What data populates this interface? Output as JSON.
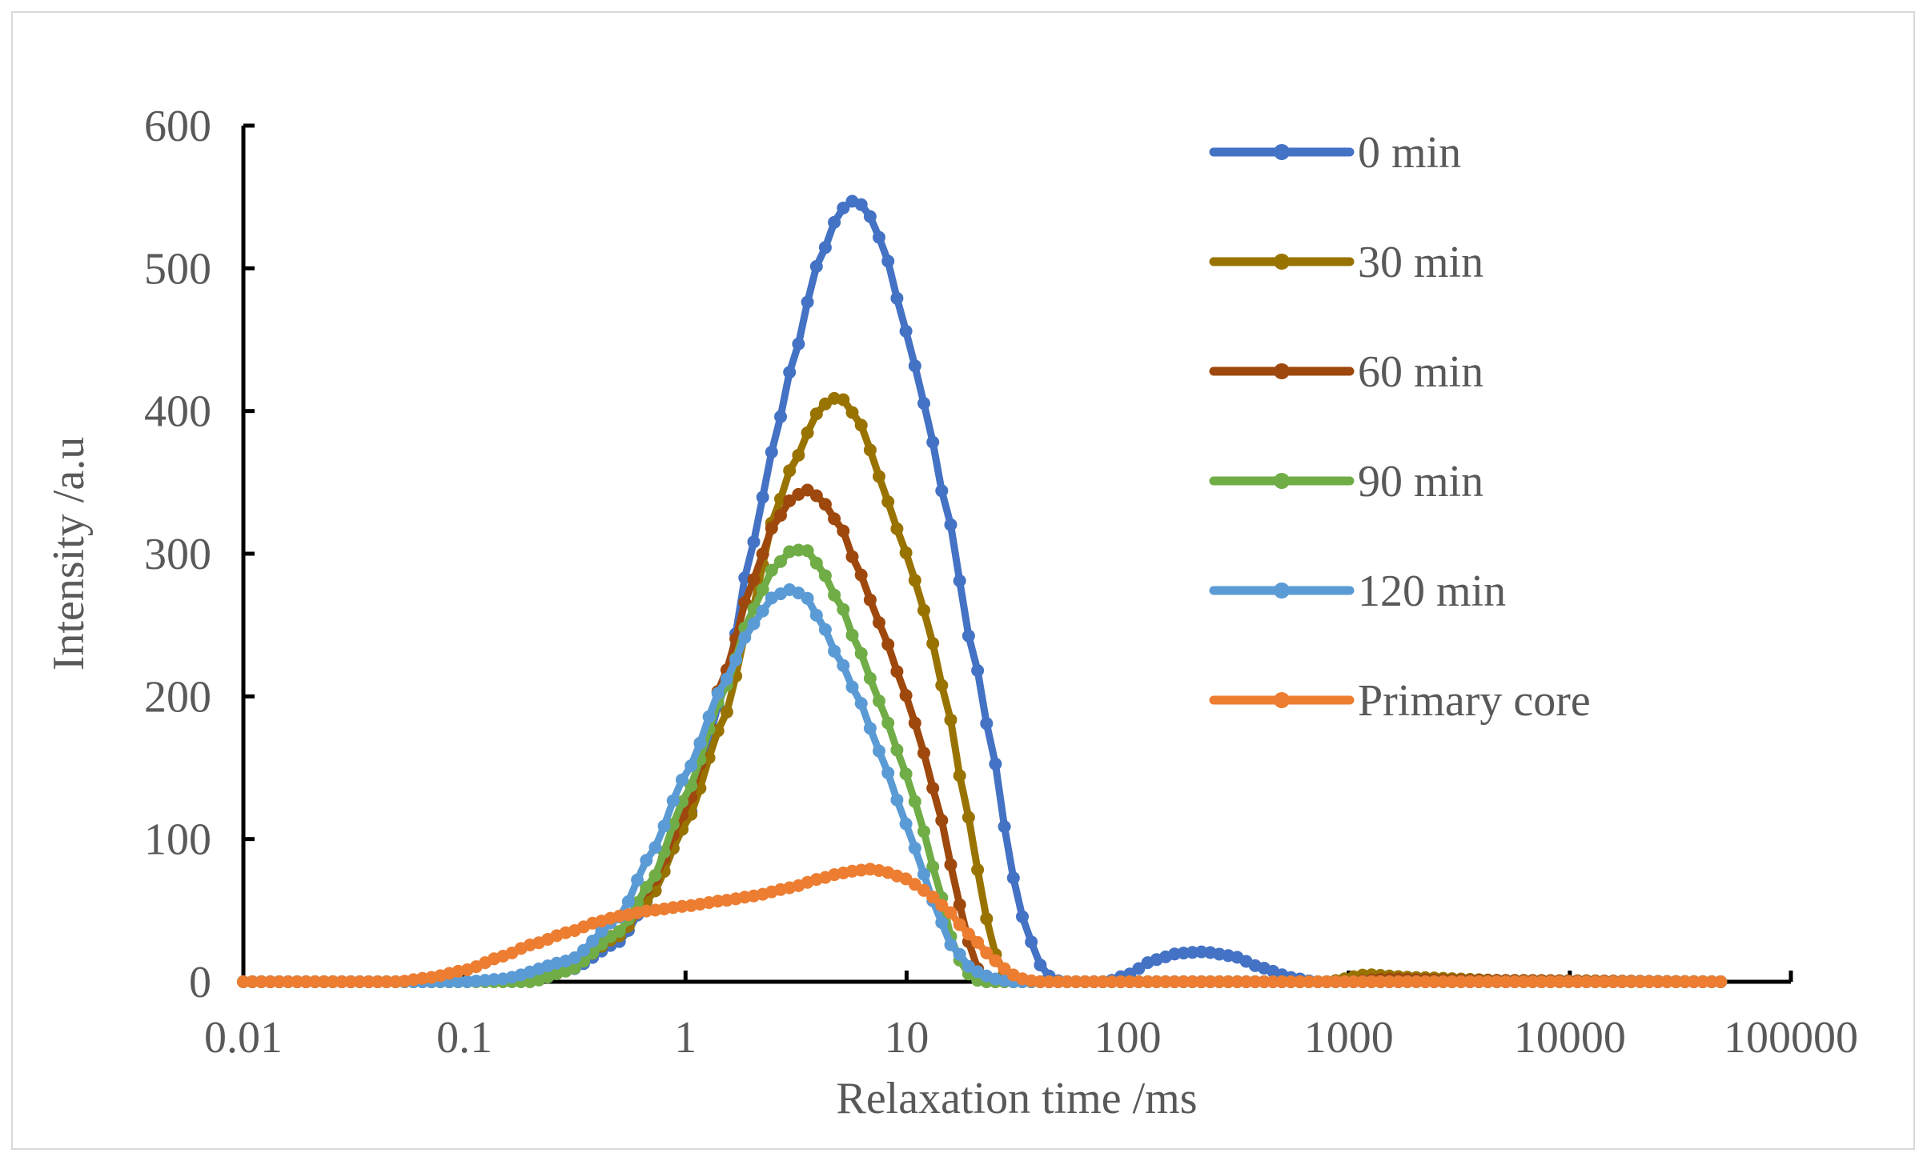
{
  "chart_data": {
    "type": "line",
    "title": "",
    "xlabel": "Relaxation time /ms",
    "ylabel": "Intensity /a.u",
    "xscale": "log",
    "xlim": [
      0.01,
      100000
    ],
    "ylim": [
      0,
      600
    ],
    "x_ticks": [
      0.01,
      0.1,
      1,
      10,
      100,
      1000,
      10000,
      100000
    ],
    "x_tick_labels": [
      "0.01",
      "0.1",
      "1",
      "10",
      "100",
      "1000",
      "10000",
      "100000"
    ],
    "y_ticks": [
      0,
      100,
      200,
      300,
      400,
      500,
      600
    ],
    "y_tick_labels": [
      "0",
      "100",
      "200",
      "300",
      "400",
      "500",
      "600"
    ],
    "grid": false,
    "legend_position": "top-right",
    "series": [
      {
        "name": "0 min",
        "color": "#4472C4",
        "points": [
          [
            0.01,
            0
          ],
          [
            0.1,
            0
          ],
          [
            0.2,
            2
          ],
          [
            0.3,
            8
          ],
          [
            0.5,
            28
          ],
          [
            0.7,
            60
          ],
          [
            1,
            110
          ],
          [
            1.5,
            205
          ],
          [
            2,
            305
          ],
          [
            2.5,
            375
          ],
          [
            3,
            430
          ],
          [
            4,
            505
          ],
          [
            5,
            540
          ],
          [
            5.5,
            547
          ],
          [
            6,
            547
          ],
          [
            7,
            535
          ],
          [
            8,
            510
          ],
          [
            10,
            455
          ],
          [
            12,
            405
          ],
          [
            15,
            335
          ],
          [
            20,
            230
          ],
          [
            25,
            155
          ],
          [
            30,
            75
          ],
          [
            35,
            35
          ],
          [
            40,
            12
          ],
          [
            45,
            3
          ],
          [
            50,
            0
          ],
          [
            80,
            0
          ],
          [
            100,
            5
          ],
          [
            130,
            15
          ],
          [
            170,
            20
          ],
          [
            220,
            21
          ],
          [
            300,
            18
          ],
          [
            400,
            10
          ],
          [
            550,
            3
          ],
          [
            700,
            0
          ],
          [
            1000,
            0
          ],
          [
            10000,
            0
          ],
          [
            50000,
            0
          ]
        ]
      },
      {
        "name": "30 min",
        "color": "#997300",
        "points": [
          [
            0.01,
            0
          ],
          [
            0.1,
            0
          ],
          [
            0.2,
            2
          ],
          [
            0.3,
            10
          ],
          [
            0.5,
            32
          ],
          [
            0.7,
            60
          ],
          [
            1,
            110
          ],
          [
            1.5,
            185
          ],
          [
            2,
            260
          ],
          [
            2.5,
            325
          ],
          [
            3,
            360
          ],
          [
            4,
            400
          ],
          [
            4.5,
            408
          ],
          [
            5,
            410
          ],
          [
            6,
            395
          ],
          [
            7,
            370
          ],
          [
            8,
            340
          ],
          [
            10,
            300
          ],
          [
            12,
            260
          ],
          [
            15,
            200
          ],
          [
            18,
            135
          ],
          [
            20,
            100
          ],
          [
            22,
            55
          ],
          [
            25,
            20
          ],
          [
            28,
            5
          ],
          [
            30,
            0
          ],
          [
            100,
            0
          ],
          [
            800,
            0
          ],
          [
            1200,
            5
          ],
          [
            2000,
            3
          ],
          [
            5000,
            1
          ],
          [
            50000,
            0
          ]
        ]
      },
      {
        "name": "60 min",
        "color": "#9E480E",
        "points": [
          [
            0.01,
            0
          ],
          [
            0.1,
            0
          ],
          [
            0.2,
            2
          ],
          [
            0.3,
            10
          ],
          [
            0.5,
            35
          ],
          [
            0.7,
            68
          ],
          [
            1,
            120
          ],
          [
            1.5,
            215
          ],
          [
            2,
            280
          ],
          [
            2.5,
            320
          ],
          [
            3,
            338
          ],
          [
            3.5,
            345
          ],
          [
            4,
            340
          ],
          [
            5,
            320
          ],
          [
            6,
            290
          ],
          [
            7,
            265
          ],
          [
            8,
            240
          ],
          [
            10,
            200
          ],
          [
            12,
            160
          ],
          [
            14,
            120
          ],
          [
            16,
            80
          ],
          [
            18,
            45
          ],
          [
            20,
            15
          ],
          [
            22,
            3
          ],
          [
            25,
            0
          ],
          [
            100,
            0
          ],
          [
            1000,
            0
          ],
          [
            1500,
            2
          ],
          [
            3000,
            1
          ],
          [
            50000,
            0
          ]
        ]
      },
      {
        "name": "90 min",
        "color": "#70AD47",
        "points": [
          [
            0.01,
            0
          ],
          [
            0.1,
            0
          ],
          [
            0.2,
            0
          ],
          [
            0.3,
            8
          ],
          [
            0.5,
            35
          ],
          [
            0.7,
            70
          ],
          [
            1,
            130
          ],
          [
            1.5,
            205
          ],
          [
            2,
            260
          ],
          [
            2.5,
            290
          ],
          [
            3,
            302
          ],
          [
            3.5,
            303
          ],
          [
            4,
            292
          ],
          [
            5,
            265
          ],
          [
            6,
            235
          ],
          [
            7,
            210
          ],
          [
            8,
            185
          ],
          [
            10,
            145
          ],
          [
            12,
            105
          ],
          [
            14,
            65
          ],
          [
            16,
            30
          ],
          [
            18,
            10
          ],
          [
            20,
            2
          ],
          [
            22,
            0
          ],
          [
            100,
            0
          ],
          [
            50000,
            0
          ]
        ]
      },
      {
        "name": "120 min",
        "color": "#5B9BD5",
        "points": [
          [
            0.01,
            0
          ],
          [
            0.1,
            0
          ],
          [
            0.15,
            2
          ],
          [
            0.3,
            15
          ],
          [
            0.5,
            45
          ],
          [
            0.7,
            90
          ],
          [
            1,
            145
          ],
          [
            1.5,
            210
          ],
          [
            2,
            250
          ],
          [
            2.5,
            270
          ],
          [
            3,
            275
          ],
          [
            3.5,
            270
          ],
          [
            4,
            255
          ],
          [
            5,
            225
          ],
          [
            6,
            200
          ],
          [
            7,
            175
          ],
          [
            8,
            150
          ],
          [
            10,
            110
          ],
          [
            12,
            75
          ],
          [
            14,
            45
          ],
          [
            16,
            25
          ],
          [
            20,
            8
          ],
          [
            25,
            2
          ],
          [
            30,
            0
          ],
          [
            100,
            0
          ],
          [
            50000,
            0
          ]
        ]
      },
      {
        "name": "Primary core",
        "color": "#ED7D31",
        "points": [
          [
            0.01,
            0
          ],
          [
            0.05,
            0
          ],
          [
            0.07,
            3
          ],
          [
            0.1,
            8
          ],
          [
            0.15,
            18
          ],
          [
            0.2,
            26
          ],
          [
            0.3,
            35
          ],
          [
            0.4,
            42
          ],
          [
            0.5,
            46
          ],
          [
            0.7,
            50
          ],
          [
            1,
            53
          ],
          [
            1.5,
            57
          ],
          [
            2,
            60
          ],
          [
            3,
            66
          ],
          [
            4,
            72
          ],
          [
            5,
            76
          ],
          [
            6,
            78
          ],
          [
            7,
            79
          ],
          [
            8,
            77
          ],
          [
            10,
            72
          ],
          [
            12,
            64
          ],
          [
            15,
            52
          ],
          [
            18,
            38
          ],
          [
            20,
            30
          ],
          [
            25,
            15
          ],
          [
            30,
            5
          ],
          [
            35,
            1
          ],
          [
            40,
            0
          ],
          [
            100,
            0
          ],
          [
            1000,
            0
          ],
          [
            50000,
            0
          ]
        ]
      }
    ]
  }
}
